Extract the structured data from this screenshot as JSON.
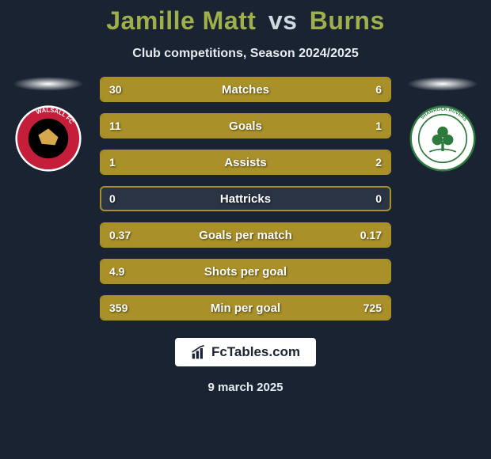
{
  "title": {
    "player1": "Jamille Matt",
    "vs": "vs",
    "player2": "Burns",
    "player1_color": "#9fb04a",
    "vs_color": "#d0d8e0",
    "player2_color": "#9fb04a"
  },
  "subtitle": "Club competitions, Season 2024/2025",
  "background_color": "#1a2332",
  "teams": {
    "left": {
      "name": "Walsall FC",
      "crest_bg": "#c41e3a",
      "crest_border": "#ffffff",
      "crest_text": "WALSALL FC",
      "crest_inner": "#000000"
    },
    "right": {
      "name": "Shamrock Rovers",
      "crest_bg": "#ffffff",
      "crest_border": "#2d7a3e",
      "crest_text": "SHAMROCK ROVERS",
      "crest_inner": "#2d7a3e"
    }
  },
  "bars": [
    {
      "label": "Matches",
      "left": "30",
      "right": "6",
      "left_num": 30,
      "right_num": 6,
      "fill": "#a99028",
      "border": "#a99028",
      "empty": "#2a3444"
    },
    {
      "label": "Goals",
      "left": "11",
      "right": "1",
      "left_num": 11,
      "right_num": 1,
      "fill": "#a99028",
      "border": "#a99028",
      "empty": "#2a3444"
    },
    {
      "label": "Assists",
      "left": "1",
      "right": "2",
      "left_num": 1,
      "right_num": 2,
      "fill": "#a99028",
      "border": "#a99028",
      "empty": "#2a3444"
    },
    {
      "label": "Hattricks",
      "left": "0",
      "right": "0",
      "left_num": 0,
      "right_num": 0,
      "fill": "#a99028",
      "border": "#a99028",
      "empty": "#2a3444"
    },
    {
      "label": "Goals per match",
      "left": "0.37",
      "right": "0.17",
      "left_num": 0.37,
      "right_num": 0.17,
      "fill": "#a99028",
      "border": "#a99028",
      "empty": "#2a3444"
    },
    {
      "label": "Shots per goal",
      "left": "4.9",
      "right": "",
      "left_num": 4.9,
      "right_num": 0,
      "fill": "#a99028",
      "border": "#a99028",
      "empty": "#2a3444"
    },
    {
      "label": "Min per goal",
      "left": "359",
      "right": "725",
      "left_num": 359,
      "right_num": 725,
      "fill": "#a99028",
      "border": "#a99028",
      "empty": "#2a3444",
      "inverse": true
    }
  ],
  "bar_text_color": "#ffffff",
  "footer": {
    "brand": "FcTables.com",
    "date": "9 march 2025",
    "box_bg": "#ffffff",
    "box_text": "#1a2332"
  }
}
